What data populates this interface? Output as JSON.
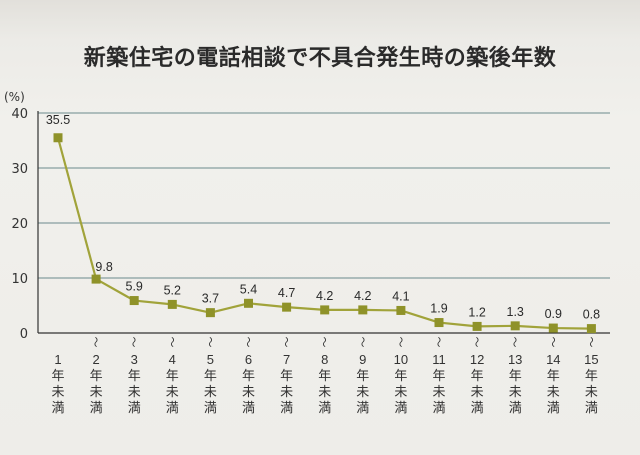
{
  "chart_data": {
    "type": "line",
    "title": "新築住宅の電話相談で不具合発生時の築後年数",
    "ylabel": "(%)",
    "ylim": [
      0,
      40
    ],
    "yticks": [
      0,
      10,
      20,
      30,
      40
    ],
    "grid": true,
    "categories": [
      "1年未満",
      "2年未満",
      "3年未満",
      "4年未満",
      "5年未満",
      "6年未満",
      "7年未満",
      "8年未満",
      "9年未満",
      "10年未満",
      "11年未満",
      "12年未満",
      "13年未満",
      "14年未満",
      "15年未満"
    ],
    "category_numbers": [
      "1",
      "2",
      "3",
      "4",
      "5",
      "6",
      "7",
      "8",
      "9",
      "10",
      "11",
      "12",
      "13",
      "14",
      "15"
    ],
    "category_suffix": [
      "年",
      "未",
      "満"
    ],
    "range_mark": "〜",
    "values": [
      35.5,
      9.8,
      5.9,
      5.2,
      3.7,
      5.4,
      4.7,
      4.2,
      4.2,
      4.1,
      1.9,
      1.2,
      1.3,
      0.9,
      0.8
    ],
    "value_labels": [
      "35.5",
      "9.8",
      "5.9",
      "5.2",
      "3.7",
      "5.4",
      "4.7",
      "4.2",
      "4.2",
      "4.1",
      "1.9",
      "1.2",
      "1.3",
      "0.9",
      "0.8"
    ],
    "colors": {
      "line": "#a1a33a",
      "marker": "#8f9229",
      "grid": "#6b8a8c",
      "axis": "#333333"
    }
  }
}
